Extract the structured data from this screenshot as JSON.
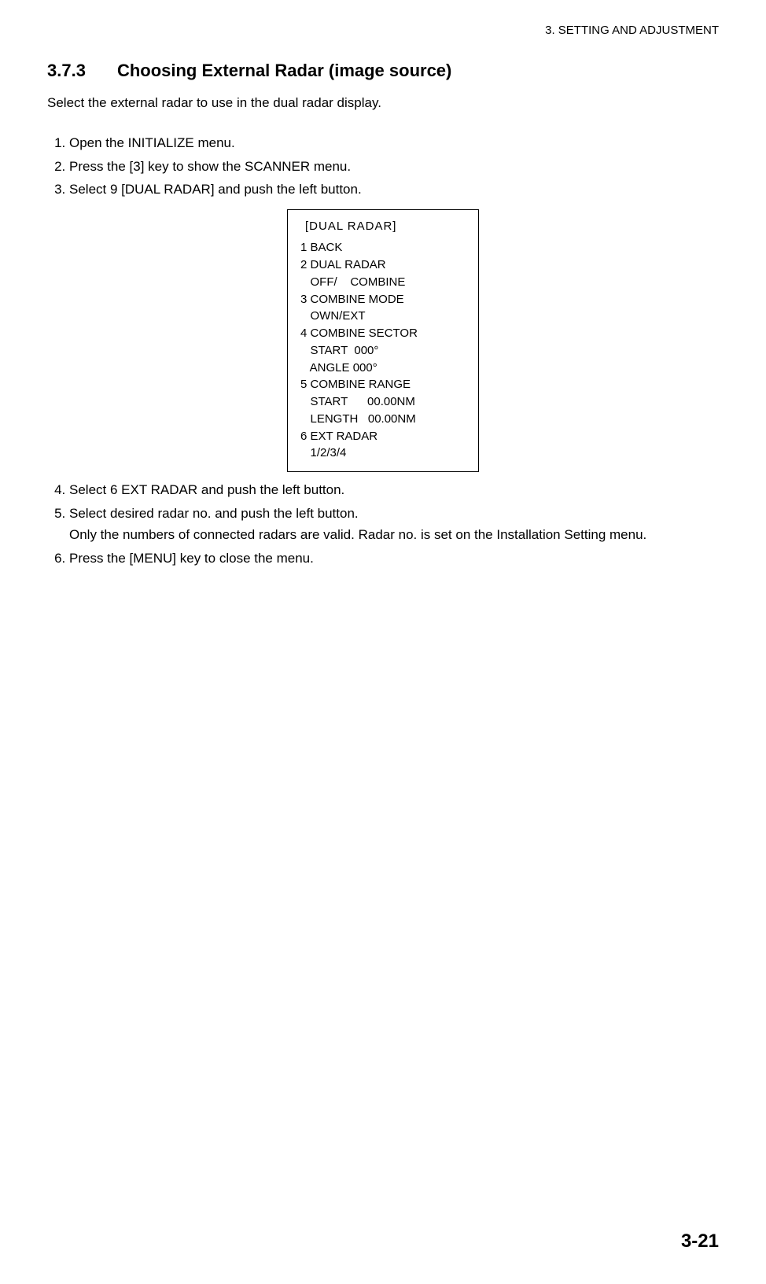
{
  "running_header": "3. SETTING AND ADJUSTMENT",
  "section": {
    "number": "3.7.3",
    "title": "Choosing External Radar (image source)"
  },
  "intro": "Select the external radar to use in the dual radar display.",
  "steps_first": [
    "Open the INITIALIZE menu.",
    "Press the [3] key to show the SCANNER menu.",
    "Select 9 [DUAL RADAR] and push the left button."
  ],
  "menu_box": {
    "title": "[DUAL  RADAR]",
    "lines": [
      "1 BACK",
      "2 DUAL RADAR",
      "   OFF/    COMBINE",
      "3 COMBINE MODE",
      "   OWN/EXT",
      "4 COMBINE SECTOR",
      "   START  000°",
      "   ANGLE 000°",
      "5 COMBINE RANGE",
      "   START      00.00NM",
      "   LENGTH   00.00NM",
      "6 EXT RADAR",
      "   1/2/3/4"
    ]
  },
  "steps_second": [
    {
      "text": "Select 6 EXT RADAR and push the left button.",
      "sub": null
    },
    {
      "text": "Select desired radar no. and push the left button.",
      "sub": "Only the numbers of connected radars are valid. Radar no. is set on the Installation Setting menu."
    },
    {
      "text": "Press the [MENU] key to close the menu.",
      "sub": null
    }
  ],
  "page_number": "3-21"
}
